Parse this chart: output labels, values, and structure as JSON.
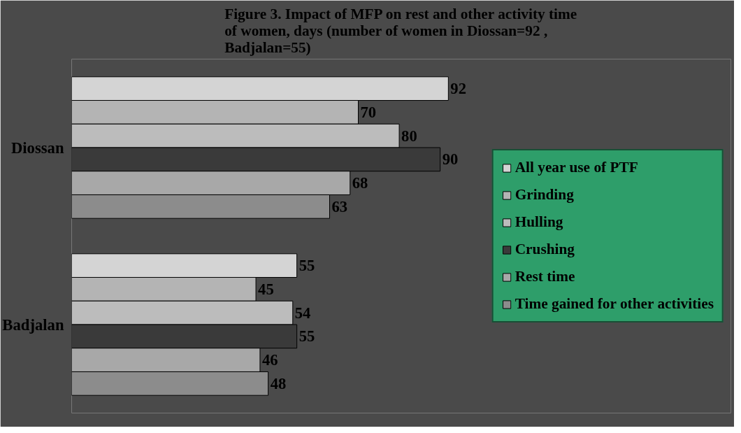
{
  "chart_data": {
    "type": "bar",
    "orientation": "horizontal",
    "title": "Figure 3. Impact of MFP on rest and other activity time of women, days (number of women in Diossan=92 , Badjalan=55)",
    "categories": [
      "Diossan",
      "Badjalan"
    ],
    "series": [
      {
        "name": "All year use of PTF",
        "color": "#d4d4d4",
        "values": [
          92,
          55
        ]
      },
      {
        "name": "Grinding",
        "color": "#b4b4b4",
        "values": [
          70,
          45
        ]
      },
      {
        "name": "Hulling",
        "color": "#bcbcbc",
        "values": [
          80,
          54
        ]
      },
      {
        "name": "Crushing",
        "color": "#3a3a3a",
        "values": [
          90,
          55
        ]
      },
      {
        "name": "Rest time",
        "color": "#a8a8a8",
        "values": [
          68,
          46
        ]
      },
      {
        "name": "Time gained for other activities",
        "color": "#8c8c8c",
        "values": [
          63,
          48
        ]
      }
    ],
    "data_labels": true,
    "legend": "right"
  }
}
